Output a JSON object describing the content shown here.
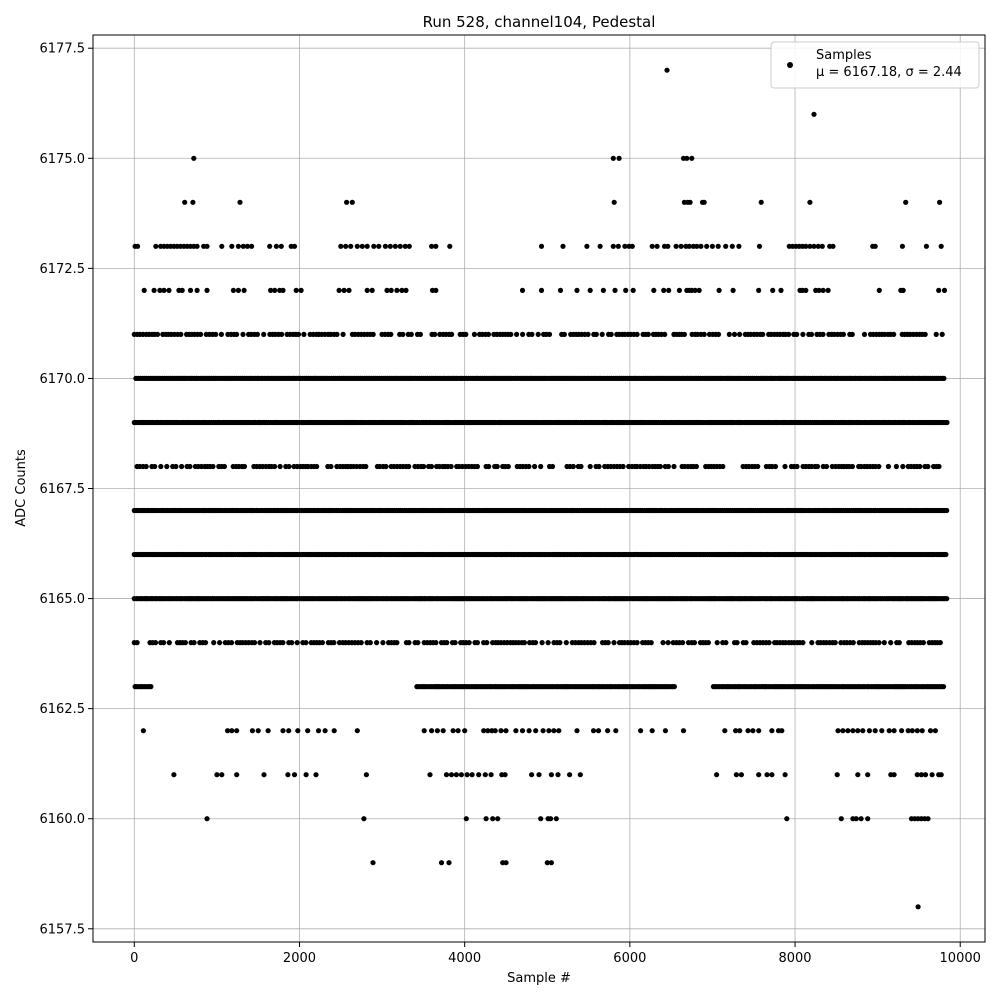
{
  "chart_data": {
    "type": "scatter",
    "title": "Run 528, channel104, Pedestal",
    "xlabel": "Sample #",
    "ylabel": "ADC Counts",
    "xlim": [
      -500,
      10300
    ],
    "ylim": [
      6157.2,
      6177.8
    ],
    "x_ticks": [
      0,
      2000,
      4000,
      6000,
      8000,
      10000
    ],
    "x_tick_labels": [
      "0",
      "2000",
      "4000",
      "6000",
      "8000",
      "10000"
    ],
    "y_ticks": [
      6157.5,
      6160.0,
      6162.5,
      6165.0,
      6167.5,
      6170.0,
      6172.5,
      6175.0,
      6177.5
    ],
    "y_tick_labels": [
      "6157.5",
      "6160.0",
      "6162.5",
      "6165.0",
      "6167.5",
      "6170.0",
      "6172.5",
      "6175.0",
      "6177.5"
    ],
    "grid": true,
    "legend": {
      "placement": "top-right",
      "series_label": "Samples",
      "stats_label": "μ = 6167.18, σ = 2.44"
    },
    "marker_color": "#000000",
    "series": [
      {
        "name": "Samples",
        "levels": [
          {
            "y": 6177,
            "x": [
              6450
            ]
          },
          {
            "y": 6176,
            "x": [
              8230
            ]
          },
          {
            "y": 6175,
            "x": [
              720,
              5800,
              5870,
              6650,
              6690,
              6750
            ]
          },
          {
            "y": 6174,
            "x": [
              610,
              710,
              1280,
              2570,
              2640,
              5810,
              6660,
              6700,
              6730,
              6880,
              6900,
              7590,
              8180,
              9340,
              9750
            ]
          },
          {
            "y": 6173,
            "x": [
              10,
              40,
              260,
              320,
              360,
              400,
              440,
              480,
              520,
              560,
              600,
              640,
              680,
              720,
              760,
              840,
              880,
              1060,
              1180,
              1260,
              1320,
              1370,
              1420,
              1640,
              1720,
              1780,
              1900,
              1940,
              2500,
              2560,
              2620,
              2700,
              2760,
              2820,
              2900,
              2960,
              3040,
              3100,
              3160,
              3220,
              3280,
              3330,
              3600,
              3650,
              3820,
              4930,
              5190,
              5480,
              5640,
              5800,
              5860,
              5940,
              5990,
              6030,
              6270,
              6330,
              6420,
              6460,
              6560,
              6620,
              6680,
              6720,
              6770,
              6810,
              6860,
              6930,
              7000,
              7070,
              7160,
              7240,
              7320,
              7570,
              7930,
              7970,
              8010,
              8050,
              8090,
              8130,
              8180,
              8230,
              8280,
              8330,
              8420,
              8460,
              8940,
              8970,
              9300,
              9590,
              9770
            ]
          },
          {
            "y": 6172,
            "x": [
              120,
              240,
              310,
              360,
              420,
              540,
              580,
              680,
              760,
              880,
              1200,
              1260,
              1330,
              1650,
              1700,
              1760,
              1800,
              1960,
              2020,
              2480,
              2540,
              2600,
              2820,
              2880,
              3060,
              3110,
              3180,
              3240,
              3290,
              3610,
              3650,
              4700,
              4930,
              5160,
              5360,
              5520,
              5680,
              5820,
              5950,
              6040,
              6290,
              6410,
              6470,
              6600,
              6690,
              6720,
              6750,
              6790,
              6840,
              7080,
              7250,
              7560,
              7730,
              7830,
              8060,
              8090,
              8130,
              8250,
              8290,
              8340,
              8400,
              9020,
              9280,
              9310,
              9740,
              9810
            ]
          },
          {
            "y": 6171,
            "x": [
              0,
              3000,
              7000,
              9800
            ]
          },
          {
            "y": 6170,
            "x": [
              20,
              3000,
              7100,
              9820
            ]
          },
          {
            "y": 6169,
            "x": [
              0,
              9850
            ]
          },
          {
            "y": 6168,
            "x": [
              0,
              3000,
              7000,
              9800
            ]
          },
          {
            "y": 6167,
            "x": [
              0,
              9850
            ]
          },
          {
            "y": 6166,
            "x": [
              0,
              9850
            ]
          },
          {
            "y": 6165,
            "x": [
              0,
              9850
            ]
          },
          {
            "y": 6164,
            "x": [
              0,
              3000,
              7000,
              9820
            ]
          },
          {
            "y": 6163,
            "x": [
              10,
              3400,
              6550,
              7000,
              9800
            ]
          },
          {
            "y": 6162,
            "x": [
              110,
              1130,
              1180,
              1240,
              1430,
              1500,
              1620,
              1800,
              1870,
              1980,
              2100,
              2230,
              2310,
              2420,
              2700,
              3510,
              3600,
              3670,
              3740,
              3860,
              3920,
              4000,
              4230,
              4280,
              4330,
              4370,
              4440,
              4500,
              4620,
              4700,
              4780,
              4860,
              4950,
              5020,
              5080,
              5140,
              5360,
              5560,
              5620,
              5730,
              5830,
              6130,
              6270,
              6430,
              6650,
              7150,
              7280,
              7330,
              7430,
              7490,
              7560,
              7720,
              7800,
              7840,
              8520,
              8580,
              8640,
              8700,
              8760,
              8820,
              8900,
              8970,
              9050,
              9140,
              9200,
              9290,
              9370,
              9420,
              9480,
              9540,
              9640,
              9700
            ]
          },
          {
            "y": 6161,
            "x": [
              480,
              1000,
              1060,
              1240,
              1570,
              1860,
              1940,
              2080,
              2200,
              2810,
              3580,
              3780,
              3840,
              3900,
              3960,
              4030,
              4090,
              4170,
              4250,
              4320,
              4450,
              4490,
              4810,
              4900,
              5050,
              5130,
              5270,
              5400,
              7050,
              7290,
              7350,
              7560,
              7660,
              7720,
              7880,
              8510,
              8760,
              8880,
              9160,
              9200,
              9480,
              9530,
              9580,
              9660,
              9740,
              9770
            ]
          },
          {
            "y": 6160,
            "x": [
              880,
              2780,
              4020,
              4260,
              4340,
              4400,
              4920,
              5010,
              5040,
              5110,
              7900,
              8560,
              8700,
              8740,
              8800,
              8880,
              9410,
              9450,
              9490,
              9530,
              9570,
              9610
            ]
          },
          {
            "y": 6159,
            "x": [
              2890,
              3720,
              3810,
              4460,
              4500,
              5000,
              5050
            ]
          },
          {
            "y": 6158,
            "x": [
              9490
            ]
          }
        ]
      }
    ]
  }
}
